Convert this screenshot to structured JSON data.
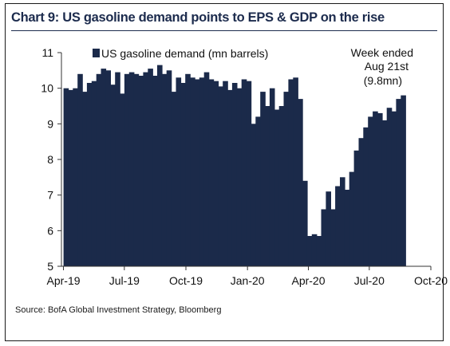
{
  "title": "Chart 9: US gasoline demand points to EPS & GDP on the rise",
  "source": "Source: BofA Global Investment Strategy, Bloomberg",
  "colors": {
    "bar": "#1b2a4a",
    "title": "#1c2b4d",
    "axis": "#333333"
  },
  "chart_data": {
    "type": "bar",
    "title": "Chart 9: US gasoline demand points to EPS & GDP on the rise",
    "legend": {
      "label": "US gasoline demand (mn barrels)",
      "placement": "top-left"
    },
    "annotation": [
      "Week ended",
      "Aug 21st",
      "(9.8mn)"
    ],
    "ylim": [
      5,
      11
    ],
    "yticks": [
      "5",
      "6",
      "7",
      "8",
      "9",
      "10",
      "11"
    ],
    "xticks": [
      "Apr-19",
      "Jul-19",
      "Oct-19",
      "Jan-20",
      "Apr-20",
      "Jul-20",
      "Oct-20"
    ],
    "xlim": [
      "2019-03-29",
      "2020-10-01"
    ],
    "grid": false,
    "series": [
      {
        "name": "US gasoline demand (mn barrels)",
        "x": [
          "2019-04-05",
          "2019-04-12",
          "2019-04-19",
          "2019-04-26",
          "2019-05-03",
          "2019-05-10",
          "2019-05-17",
          "2019-05-24",
          "2019-05-31",
          "2019-06-07",
          "2019-06-14",
          "2019-06-21",
          "2019-06-28",
          "2019-07-05",
          "2019-07-12",
          "2019-07-19",
          "2019-07-26",
          "2019-08-02",
          "2019-08-09",
          "2019-08-16",
          "2019-08-23",
          "2019-08-30",
          "2019-09-06",
          "2019-09-13",
          "2019-09-20",
          "2019-09-27",
          "2019-10-04",
          "2019-10-11",
          "2019-10-18",
          "2019-10-25",
          "2019-11-01",
          "2019-11-08",
          "2019-11-15",
          "2019-11-22",
          "2019-11-29",
          "2019-12-06",
          "2019-12-13",
          "2019-12-20",
          "2019-12-27",
          "2020-01-03",
          "2020-01-10",
          "2020-01-17",
          "2020-01-24",
          "2020-01-31",
          "2020-02-07",
          "2020-02-14",
          "2020-02-21",
          "2020-02-28",
          "2020-03-06",
          "2020-03-13",
          "2020-03-20",
          "2020-03-27",
          "2020-04-03",
          "2020-04-10",
          "2020-04-17",
          "2020-04-24",
          "2020-05-01",
          "2020-05-08",
          "2020-05-15",
          "2020-05-22",
          "2020-05-29",
          "2020-06-05",
          "2020-06-12",
          "2020-06-19",
          "2020-06-26",
          "2020-07-03",
          "2020-07-10",
          "2020-07-17",
          "2020-07-24",
          "2020-07-31",
          "2020-08-07",
          "2020-08-14",
          "2020-08-21"
        ],
        "values": [
          10.0,
          9.95,
          10.0,
          10.4,
          9.9,
          10.15,
          10.2,
          10.4,
          10.55,
          10.5,
          10.1,
          10.45,
          9.85,
          10.4,
          10.45,
          10.4,
          10.35,
          10.45,
          10.55,
          10.35,
          10.65,
          10.4,
          10.5,
          9.9,
          10.3,
          10.15,
          10.4,
          10.3,
          10.25,
          10.3,
          10.45,
          10.25,
          10.2,
          10.05,
          10.2,
          9.95,
          10.15,
          10.0,
          10.25,
          10.2,
          9.0,
          9.2,
          9.9,
          9.5,
          10.0,
          9.4,
          9.5,
          9.9,
          10.25,
          10.3,
          9.7,
          7.4,
          5.85,
          5.9,
          5.85,
          6.6,
          7.1,
          6.6,
          7.25,
          7.5,
          7.15,
          7.65,
          8.25,
          8.6,
          8.9,
          9.2,
          9.35,
          9.3,
          9.1,
          9.45,
          9.35,
          9.7,
          9.8
        ]
      }
    ]
  }
}
